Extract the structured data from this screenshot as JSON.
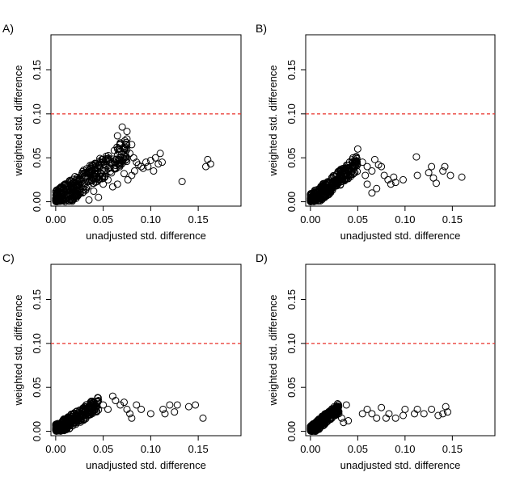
{
  "chart_data": [
    {
      "type": "scatter",
      "panel_label": "A)",
      "xlabel": "unadjusted std. difference",
      "ylabel": "weighted std. difference",
      "xlim": [
        -0.005,
        0.195
      ],
      "ylim": [
        -0.005,
        0.19
      ],
      "xticks": [
        "0.00",
        "0.05",
        "0.10",
        "0.15"
      ],
      "yticks": [
        "0.00",
        "0.05",
        "0.10",
        "0.15"
      ],
      "reference_line": {
        "y": 0.1,
        "style": "dashed",
        "color": "#e8302a"
      },
      "cloud": {
        "slope": 0.78,
        "xmax": 0.075,
        "spread": 0.013,
        "count": 380
      },
      "points": [
        [
          0.07,
          0.085
        ],
        [
          0.065,
          0.075
        ],
        [
          0.075,
          0.08
        ],
        [
          0.08,
          0.065
        ],
        [
          0.072,
          0.06
        ],
        [
          0.068,
          0.067
        ],
        [
          0.078,
          0.055
        ],
        [
          0.082,
          0.05
        ],
        [
          0.085,
          0.045
        ],
        [
          0.09,
          0.04
        ],
        [
          0.095,
          0.045
        ],
        [
          0.1,
          0.047
        ],
        [
          0.105,
          0.05
        ],
        [
          0.11,
          0.055
        ],
        [
          0.112,
          0.045
        ],
        [
          0.108,
          0.043
        ],
        [
          0.103,
          0.035
        ],
        [
          0.097,
          0.04
        ],
        [
          0.092,
          0.038
        ],
        [
          0.087,
          0.042
        ],
        [
          0.083,
          0.035
        ],
        [
          0.08,
          0.03
        ],
        [
          0.076,
          0.025
        ],
        [
          0.072,
          0.032
        ],
        [
          0.133,
          0.023
        ],
        [
          0.16,
          0.048
        ],
        [
          0.163,
          0.043
        ],
        [
          0.158,
          0.04
        ],
        [
          0.04,
          0.012
        ],
        [
          0.05,
          0.02
        ],
        [
          0.055,
          0.025
        ],
        [
          0.06,
          0.017
        ],
        [
          0.065,
          0.02
        ],
        [
          0.045,
          0.005
        ],
        [
          0.035,
          0.002
        ]
      ]
    },
    {
      "type": "scatter",
      "panel_label": "B)",
      "xlabel": "unadjusted std. difference",
      "ylabel": "weighted std. difference",
      "xlim": [
        -0.005,
        0.195
      ],
      "ylim": [
        -0.005,
        0.19
      ],
      "xticks": [
        "0.00",
        "0.05",
        "0.10",
        "0.15"
      ],
      "yticks": [
        "0.00",
        "0.05",
        "0.10",
        "0.15"
      ],
      "reference_line": {
        "y": 0.1,
        "style": "dashed",
        "color": "#e8302a"
      },
      "cloud": {
        "slope": 0.88,
        "xmax": 0.05,
        "spread": 0.009,
        "count": 330
      },
      "points": [
        [
          0.05,
          0.06
        ],
        [
          0.045,
          0.05
        ],
        [
          0.055,
          0.045
        ],
        [
          0.06,
          0.04
        ],
        [
          0.065,
          0.035
        ],
        [
          0.068,
          0.048
        ],
        [
          0.072,
          0.042
        ],
        [
          0.075,
          0.04
        ],
        [
          0.078,
          0.03
        ],
        [
          0.082,
          0.025
        ],
        [
          0.085,
          0.02
        ],
        [
          0.088,
          0.028
        ],
        [
          0.09,
          0.022
        ],
        [
          0.07,
          0.015
        ],
        [
          0.065,
          0.01
        ],
        [
          0.06,
          0.02
        ],
        [
          0.112,
          0.051
        ],
        [
          0.113,
          0.03
        ],
        [
          0.125,
          0.033
        ],
        [
          0.128,
          0.04
        ],
        [
          0.13,
          0.027
        ],
        [
          0.133,
          0.021
        ],
        [
          0.14,
          0.035
        ],
        [
          0.142,
          0.04
        ],
        [
          0.148,
          0.03
        ],
        [
          0.16,
          0.028
        ],
        [
          0.098,
          0.025
        ],
        [
          0.058,
          0.03
        ]
      ]
    },
    {
      "type": "scatter",
      "panel_label": "C)",
      "xlabel": "unadjusted std. difference",
      "ylabel": "weighted std. difference",
      "xlim": [
        -0.005,
        0.195
      ],
      "ylim": [
        -0.005,
        0.19
      ],
      "xticks": [
        "0.00",
        "0.05",
        "0.10",
        "0.15"
      ],
      "yticks": [
        "0.00",
        "0.05",
        "0.10",
        "0.15"
      ],
      "reference_line": {
        "y": 0.1,
        "style": "dashed",
        "color": "#e8302a"
      },
      "cloud": {
        "slope": 0.7,
        "xmax": 0.045,
        "spread": 0.008,
        "count": 340
      },
      "points": [
        [
          0.045,
          0.035
        ],
        [
          0.05,
          0.03
        ],
        [
          0.055,
          0.025
        ],
        [
          0.06,
          0.04
        ],
        [
          0.063,
          0.035
        ],
        [
          0.068,
          0.03
        ],
        [
          0.072,
          0.033
        ],
        [
          0.075,
          0.025
        ],
        [
          0.078,
          0.02
        ],
        [
          0.08,
          0.015
        ],
        [
          0.085,
          0.03
        ],
        [
          0.09,
          0.025
        ],
        [
          0.1,
          0.02
        ],
        [
          0.113,
          0.025
        ],
        [
          0.115,
          0.02
        ],
        [
          0.12,
          0.03
        ],
        [
          0.125,
          0.022
        ],
        [
          0.128,
          0.03
        ],
        [
          0.14,
          0.028
        ],
        [
          0.147,
          0.03
        ],
        [
          0.155,
          0.015
        ],
        [
          0.04,
          0.03
        ],
        [
          0.035,
          0.025
        ]
      ]
    },
    {
      "type": "scatter",
      "panel_label": "D)",
      "xlabel": "unadjusted std. difference",
      "ylabel": "weighted std. difference",
      "xlim": [
        -0.005,
        0.195
      ],
      "ylim": [
        -0.005,
        0.19
      ],
      "xticks": [
        "0.00",
        "0.05",
        "0.10",
        "0.15"
      ],
      "yticks": [
        "0.00",
        "0.05",
        "0.10",
        "0.15"
      ],
      "reference_line": {
        "y": 0.1,
        "style": "dashed",
        "color": "#e8302a"
      },
      "cloud": {
        "slope": 0.9,
        "xmax": 0.03,
        "spread": 0.006,
        "count": 300
      },
      "points": [
        [
          0.03,
          0.02
        ],
        [
          0.033,
          0.015
        ],
        [
          0.035,
          0.01
        ],
        [
          0.038,
          0.03
        ],
        [
          0.04,
          0.012
        ],
        [
          0.055,
          0.02
        ],
        [
          0.06,
          0.025
        ],
        [
          0.065,
          0.02
        ],
        [
          0.07,
          0.015
        ],
        [
          0.075,
          0.027
        ],
        [
          0.08,
          0.015
        ],
        [
          0.083,
          0.02
        ],
        [
          0.09,
          0.015
        ],
        [
          0.098,
          0.018
        ],
        [
          0.1,
          0.025
        ],
        [
          0.11,
          0.02
        ],
        [
          0.113,
          0.025
        ],
        [
          0.12,
          0.02
        ],
        [
          0.128,
          0.025
        ],
        [
          0.135,
          0.018
        ],
        [
          0.14,
          0.02
        ],
        [
          0.143,
          0.028
        ],
        [
          0.145,
          0.022
        ]
      ]
    }
  ]
}
